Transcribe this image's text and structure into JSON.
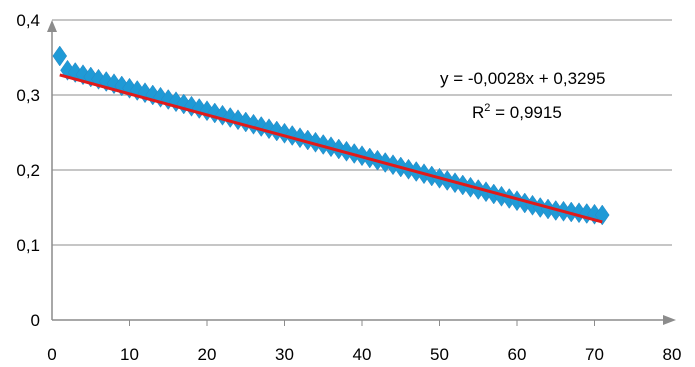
{
  "chart_data": {
    "type": "scatter",
    "title": "",
    "xlabel": "",
    "ylabel": "",
    "xlim": [
      0,
      80
    ],
    "ylim": [
      0,
      0.4
    ],
    "x_ticks": [
      0,
      10,
      20,
      30,
      40,
      50,
      60,
      70,
      80
    ],
    "x_tick_labels": [
      "0",
      "10",
      "20",
      "30",
      "40",
      "50",
      "60",
      "70",
      "80"
    ],
    "y_ticks": [
      0,
      0.1,
      0.2,
      0.3,
      0.4
    ],
    "y_tick_labels": [
      "0",
      "0,1",
      "0,2",
      "0,3",
      "0,4"
    ],
    "grid": "horizontal",
    "legend": "none",
    "series": [
      {
        "marker": "diamond",
        "color": "#1f9ad6",
        "x": [
          1,
          2,
          3,
          4,
          5,
          6,
          7,
          8,
          9,
          10,
          11,
          12,
          13,
          14,
          15,
          16,
          17,
          18,
          19,
          20,
          21,
          22,
          23,
          24,
          25,
          26,
          27,
          28,
          29,
          30,
          31,
          32,
          33,
          34,
          35,
          36,
          37,
          38,
          39,
          40,
          41,
          42,
          43,
          44,
          45,
          46,
          47,
          48,
          49,
          50,
          51,
          52,
          53,
          54,
          55,
          56,
          57,
          58,
          59,
          60,
          61,
          62,
          63,
          64,
          65,
          66,
          67,
          68,
          69,
          70,
          71
        ],
        "y": [
          0.352,
          0.333,
          0.33,
          0.327,
          0.324,
          0.321,
          0.318,
          0.315,
          0.312,
          0.309,
          0.306,
          0.303,
          0.3,
          0.297,
          0.294,
          0.291,
          0.288,
          0.285,
          0.282,
          0.279,
          0.276,
          0.273,
          0.27,
          0.267,
          0.264,
          0.261,
          0.258,
          0.255,
          0.252,
          0.249,
          0.246,
          0.243,
          0.24,
          0.237,
          0.234,
          0.231,
          0.228,
          0.225,
          0.222,
          0.219,
          0.216,
          0.213,
          0.21,
          0.207,
          0.204,
          0.201,
          0.198,
          0.195,
          0.192,
          0.189,
          0.186,
          0.183,
          0.18,
          0.177,
          0.174,
          0.171,
          0.168,
          0.165,
          0.162,
          0.159,
          0.156,
          0.153,
          0.15,
          0.148,
          0.146,
          0.145,
          0.144,
          0.143,
          0.142,
          0.141,
          0.14
        ]
      }
    ],
    "trendline": {
      "type": "linear",
      "slope": -0.0028,
      "intercept": 0.3295,
      "x_range": [
        1,
        71
      ],
      "color": "#e01a1a"
    },
    "annotations": {
      "equation": "y = -0,0028x + 0,3295",
      "r2_prefix": "R",
      "r2_sup": "2",
      "r2_value": " = 0,9915"
    }
  }
}
